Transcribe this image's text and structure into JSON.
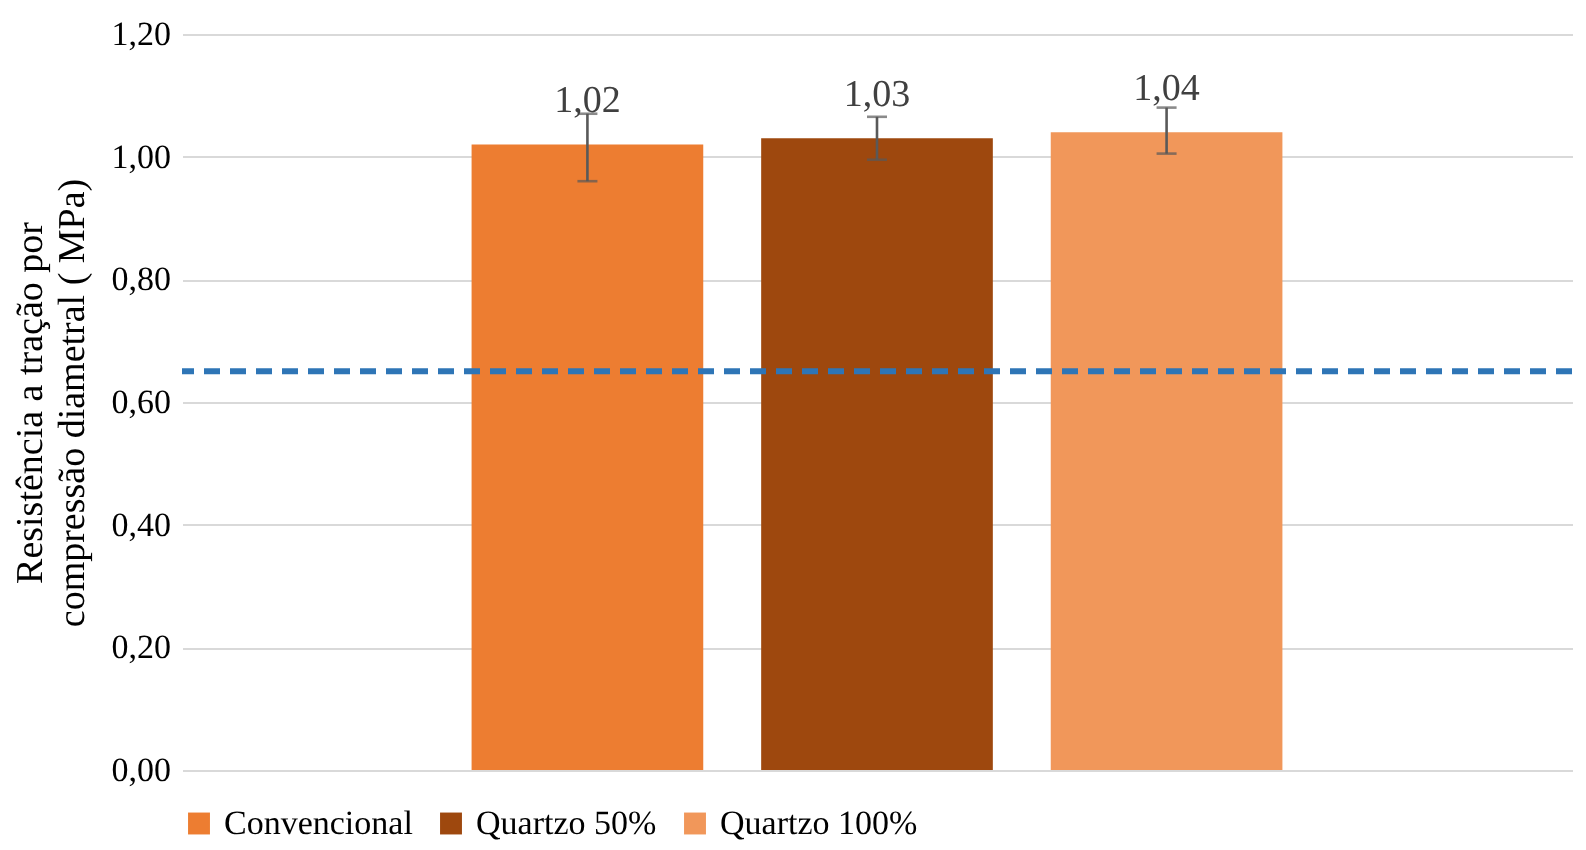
{
  "chart_data": {
    "type": "bar",
    "ylabel": "Resistência a tração por compressão diametral ( MPa)",
    "categories": [
      null
    ],
    "series": [
      {
        "name": "Convencional",
        "color": "#ed7d31",
        "values": [
          1.02
        ],
        "errors": [
          [
            0.96,
            1.07
          ]
        ],
        "value_labels": [
          "1,02"
        ]
      },
      {
        "name": "Quartzo 50%",
        "color": "#9e480e",
        "values": [
          1.03
        ],
        "errors": [
          [
            0.995,
            1.065
          ]
        ],
        "value_labels": [
          "1,03"
        ]
      },
      {
        "name": "Quartzo 100%",
        "color": "#f1975a",
        "values": [
          1.04
        ],
        "errors": [
          [
            1.005,
            1.08
          ]
        ],
        "value_labels": [
          "1,04"
        ]
      }
    ],
    "ylim": [
      0,
      1.2
    ],
    "yticks": [
      {
        "value": 0,
        "label": "0,00"
      },
      {
        "value": 0.2,
        "label": "0,20"
      },
      {
        "value": 0.4,
        "label": "0,40"
      },
      {
        "value": 0.6,
        "label": "0,60"
      },
      {
        "value": 0.8,
        "label": "0,80"
      },
      {
        "value": 1.0,
        "label": "1,00"
      },
      {
        "value": 1.2,
        "label": "1,20"
      }
    ],
    "ref_lines": [
      {
        "axis": "y",
        "value": 0.65,
        "color": "#2e75b6",
        "line_style": "dashed"
      }
    ],
    "grid": "y",
    "legend": "bottom"
  }
}
